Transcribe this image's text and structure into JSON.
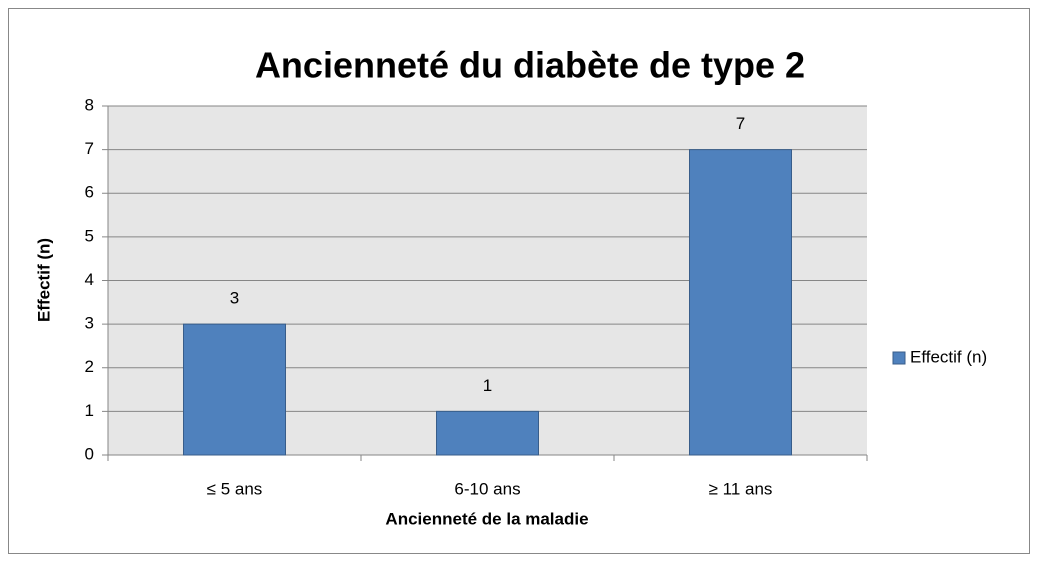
{
  "chart_data": {
    "type": "bar",
    "title": "Ancienneté du diabète de type 2",
    "x_label": "Ancienneté de la maladie",
    "y_label": "Effectif (n)",
    "categories": [
      "≤ 5 ans",
      "6-10 ans",
      "≥ 11 ans"
    ],
    "series": [
      {
        "name": "Effectif (n)",
        "color": "#4f81bd",
        "values": [
          3,
          1,
          7
        ]
      }
    ],
    "ylim": [
      0,
      8
    ],
    "yticks": [
      0,
      1,
      2,
      3,
      4,
      5,
      6,
      7,
      8
    ],
    "grid": true,
    "legend": "right",
    "data_labels": true
  }
}
